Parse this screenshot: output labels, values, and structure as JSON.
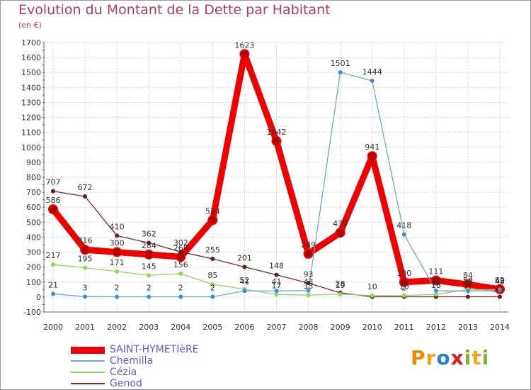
{
  "title": "Evolution du Montant de la Dette par Habitant",
  "subtitle": "(en €)",
  "logo": {
    "text": "Proxiti",
    "letters": [
      "P",
      "r",
      "o",
      "x",
      "i",
      "t",
      "i"
    ],
    "colors": [
      "#f08a00",
      "#f4a21a",
      "#2a7fd0",
      "#e01818",
      "#7bb52a",
      "#f4a21a",
      "#7bb52a"
    ]
  },
  "chart_data": {
    "type": "line",
    "title": "Evolution du Montant de la Dette par Habitant",
    "ylabel": "(en €)",
    "xlabel": "",
    "ylim": [
      -100,
      1700
    ],
    "y_ticks": [
      -100,
      0,
      100,
      200,
      300,
      400,
      500,
      600,
      700,
      800,
      900,
      1000,
      1100,
      1200,
      1300,
      1400,
      1500,
      1600,
      1700
    ],
    "grid": true,
    "categories": [
      "2000",
      "2001",
      "2002",
      "2003",
      "2004",
      "2005",
      "2006",
      "2007",
      "2008",
      "2009",
      "2010",
      "2011",
      "2012",
      "2013",
      "2014"
    ],
    "series": [
      {
        "name": "SAINT-HYMETIèRE",
        "color": "#ee0000",
        "marker": "#aa0000",
        "width": 9,
        "values": [
          586,
          316,
          300,
          284,
          268,
          514,
          1623,
          1042,
          289,
          430,
          941,
          100,
          111,
          84,
          52
        ],
        "labels": [
          "586",
          "316",
          "300",
          "284",
          "268",
          "514",
          "1623",
          "1042",
          "289",
          "430",
          "941",
          "100",
          "111",
          "84",
          "52"
        ]
      },
      {
        "name": "Chemilla",
        "color": "#6fa6d6",
        "marker": "#3b8fd4",
        "width": 1.3,
        "values": [
          21,
          3,
          2,
          2,
          2,
          2,
          41,
          41,
          43,
          1501,
          1444,
          418,
          42,
          40,
          45
        ],
        "labels": [
          "21",
          "3",
          "2",
          "2",
          "2",
          "2",
          "41",
          "41",
          "43",
          "1501",
          "1444",
          "418",
          "42",
          "40",
          "45"
        ]
      },
      {
        "name": "Cézia",
        "color": "#8ed46a",
        "marker": "#88dd55",
        "width": 1.3,
        "values": [
          217,
          195,
          171,
          145,
          156,
          85,
          52,
          17,
          13,
          19,
          10,
          10,
          18,
          50,
          49
        ],
        "labels": [
          "217",
          "195",
          "171",
          "145",
          "156",
          "85",
          "52",
          "17",
          "13",
          "19",
          "10",
          "10",
          "18",
          "50",
          "49"
        ]
      },
      {
        "name": "Genod",
        "color": "#7a2a2a",
        "marker": "#6a1818",
        "width": 1.3,
        "values": [
          707,
          672,
          410,
          362,
          302,
          255,
          201,
          148,
          93,
          28,
          2,
          2,
          2,
          2,
          2
        ],
        "labels": [
          "707",
          "672",
          "410",
          "362",
          "302",
          "255",
          "201",
          "148",
          "93",
          "28",
          "",
          "2",
          "",
          "",
          ""
        ]
      }
    ]
  }
}
